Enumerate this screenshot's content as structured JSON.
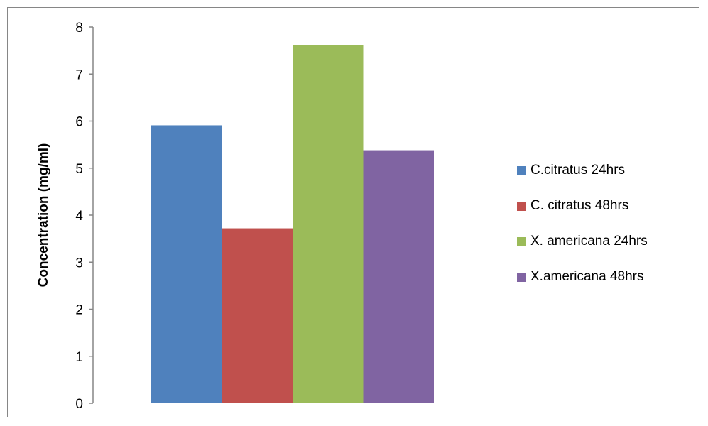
{
  "chart_data": {
    "type": "bar",
    "title": "",
    "xlabel": "",
    "ylabel": "Concentration (mg/ml)",
    "ylim": [
      0,
      8
    ],
    "yticks": [
      "0",
      "1",
      "2",
      "3",
      "4",
      "5",
      "6",
      "7",
      "8"
    ],
    "grid": false,
    "legend_position": "right",
    "series": [
      {
        "name": "C.citratus 24hrs",
        "value": 5.91,
        "color": "#4f81bd"
      },
      {
        "name": "C. citratus 48hrs",
        "value": 3.72,
        "color": "#c0504d"
      },
      {
        "name": "X. americana 24hrs",
        "value": 7.62,
        "color": "#9bbb59"
      },
      {
        "name": "X.americana 48hrs",
        "value": 5.38,
        "color": "#8064a2"
      }
    ]
  }
}
